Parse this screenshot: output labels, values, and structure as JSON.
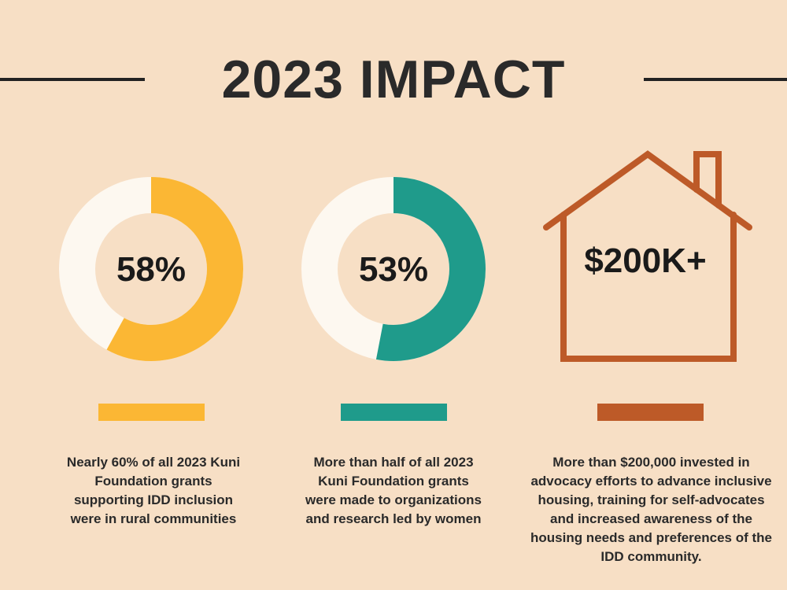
{
  "header": {
    "title": "2023 IMPACT"
  },
  "stats": [
    {
      "value": "58%",
      "percent": 58,
      "color": "#fbb734",
      "lines": [
        "Nearly 60% of all 2023 Kuni",
        "Foundation grants",
        "supporting IDD inclusion",
        "were in rural communities"
      ]
    },
    {
      "value": "53%",
      "percent": 53,
      "color": "#1f9b8b",
      "lines": [
        "More than half of all 2023",
        "Kuni Foundation grants",
        "were made to organizations",
        "and research led by women"
      ]
    },
    {
      "value": "$200K+",
      "color": "#bd5a28",
      "icon": "house-icon",
      "lines": [
        "More than $200,000 invested in",
        "advocacy efforts to advance inclusive",
        "housing, training for self-advocates",
        "and increased awareness of the",
        "housing needs and preferences of the",
        "IDD community."
      ]
    }
  ],
  "colors": {
    "background": "#f7dfc5",
    "ring_track": "#fdf8f0",
    "text": "#2a2a2a"
  }
}
